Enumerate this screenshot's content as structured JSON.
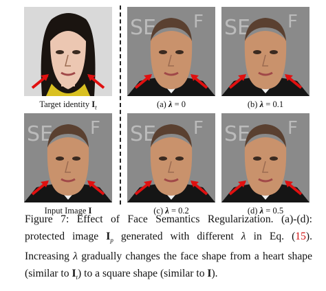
{
  "panels": [
    {
      "label": [
        "Target identity ",
        "I",
        "t"
      ]
    },
    {
      "label": [
        "(a)  ",
        "λ",
        " = 0"
      ]
    },
    {
      "label": [
        "(b)  ",
        "λ",
        " = 0.1"
      ]
    },
    {
      "label": [
        "Input Image  ",
        "I"
      ]
    },
    {
      "label": [
        "(c)  ",
        "λ",
        " = 0.2"
      ]
    },
    {
      "label": [
        "(d)  ",
        "λ",
        " = 0.5"
      ]
    }
  ],
  "caption": [
    "Figure 7: Effect of Face Semantics Regularization. (a)-(d): protected image ",
    "I",
    "p",
    " generated with different ",
    "λ",
    " in Eq. (",
    "15",
    "). Increasing ",
    "λ",
    " gradually changes the face shape from a heart shape (similar to ",
    "I",
    "t",
    ") to a square shape (similar to ",
    "I",
    ")."
  ]
}
